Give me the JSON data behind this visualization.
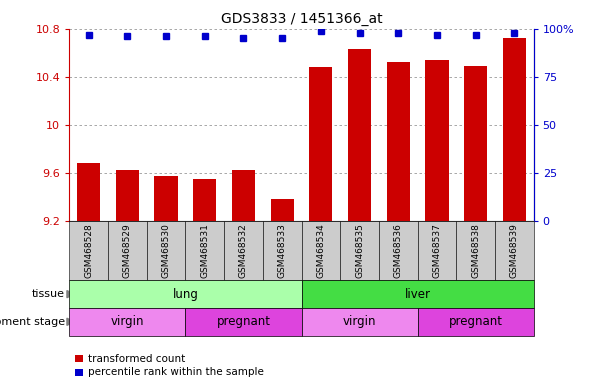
{
  "title": "GDS3833 / 1451366_at",
  "samples": [
    "GSM468528",
    "GSM468529",
    "GSM468530",
    "GSM468531",
    "GSM468532",
    "GSM468533",
    "GSM468534",
    "GSM468535",
    "GSM468536",
    "GSM468537",
    "GSM468538",
    "GSM468539"
  ],
  "transformed_count": [
    9.68,
    9.62,
    9.57,
    9.55,
    9.62,
    9.38,
    10.48,
    10.63,
    10.52,
    10.54,
    10.49,
    10.72
  ],
  "percentile_rank": [
    97,
    96,
    96,
    96,
    95,
    95,
    99,
    98,
    98,
    97,
    97,
    98
  ],
  "y_min": 9.2,
  "y_max": 10.8,
  "y_ticks": [
    9.2,
    9.6,
    10.0,
    10.4,
    10.8
  ],
  "y_tick_labels": [
    "9.2",
    "9.6",
    "10",
    "10.4",
    "10.8"
  ],
  "right_y_ticks": [
    0,
    25,
    50,
    75,
    100
  ],
  "right_y_labels": [
    "0",
    "25",
    "50",
    "75",
    "100%"
  ],
  "bar_color": "#cc0000",
  "dot_color": "#0000cc",
  "tissue_groups": [
    {
      "label": "lung",
      "start": 0,
      "end": 6,
      "color": "#aaffaa"
    },
    {
      "label": "liver",
      "start": 6,
      "end": 12,
      "color": "#44dd44"
    }
  ],
  "dev_stage_groups": [
    {
      "label": "virgin",
      "start": 0,
      "end": 3,
      "color": "#ee88ee"
    },
    {
      "label": "pregnant",
      "start": 3,
      "end": 6,
      "color": "#dd44dd"
    },
    {
      "label": "virgin",
      "start": 6,
      "end": 9,
      "color": "#ee88ee"
    },
    {
      "label": "pregnant",
      "start": 9,
      "end": 12,
      "color": "#dd44dd"
    }
  ],
  "legend_items": [
    {
      "label": "transformed count",
      "color": "#cc0000"
    },
    {
      "label": "percentile rank within the sample",
      "color": "#0000cc"
    }
  ],
  "background_color": "#ffffff",
  "grid_color": "#999999",
  "bar_bottom": 9.2,
  "xlabel_bg": "#cccccc"
}
